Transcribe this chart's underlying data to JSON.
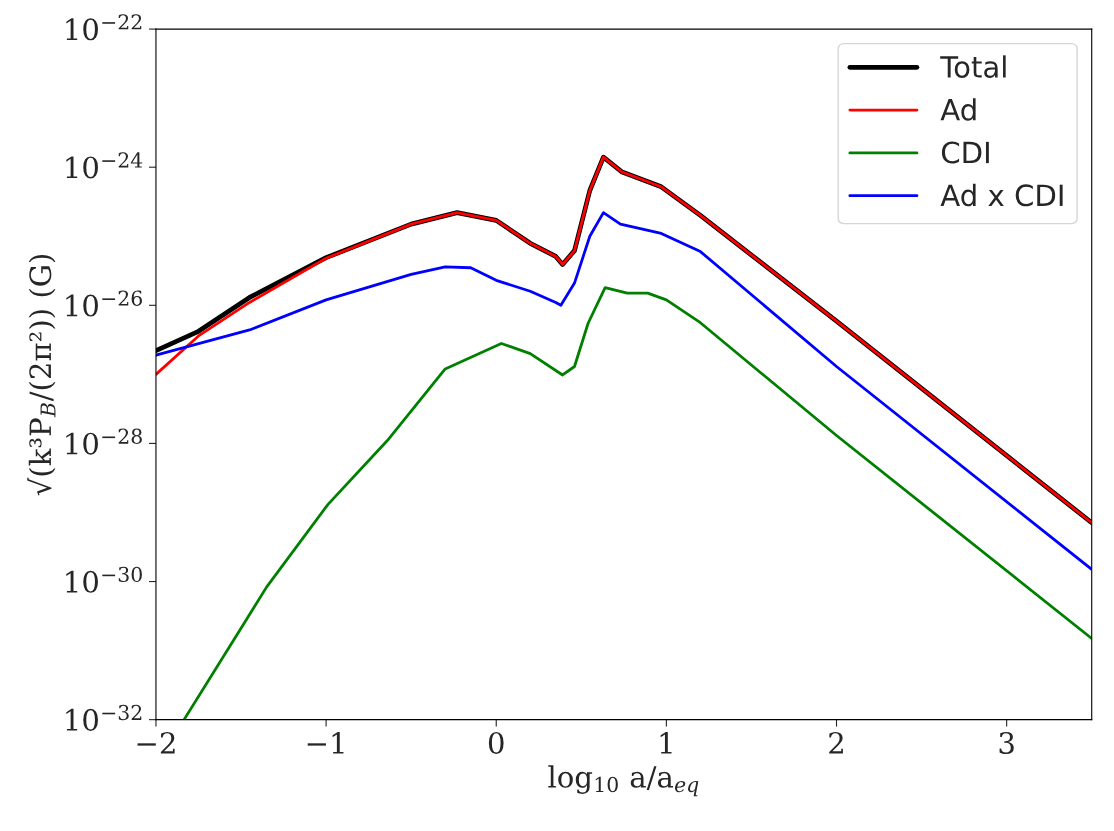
{
  "chart_data": {
    "type": "line",
    "xlabel": "log$_{10}$ a/a$_{eq}$",
    "ylabel": "√(k³P$_{B}$/(2π²)) (G)",
    "log": "y",
    "grid": false,
    "legend": "top right",
    "line_style": "solid",
    "marker": "none",
    "xlim": [
      -2,
      3.5
    ],
    "xticks": [
      {
        "value": -2,
        "label": "−2"
      },
      {
        "value": -1,
        "label": "−1"
      },
      0,
      1,
      2,
      3
    ],
    "ylim": [
      1e-32,
      1e-22
    ],
    "yticks": [
      {
        "value": 1e-32,
        "label": "10$^{−32}$"
      },
      {
        "value": 1e-30,
        "label": "10$^{−30}$"
      },
      {
        "value": 1e-28,
        "label": "10$^{−28}$"
      },
      {
        "value": 1e-26,
        "label": "10$^{−26}$"
      },
      {
        "value": 1e-24,
        "label": "10$^{−24}$"
      },
      {
        "value": 1e-22,
        "label": "10$^{−22}$"
      }
    ],
    "series": [
      {
        "name": "Total",
        "color": "#000000",
        "x": [
          -2.0,
          -1.75,
          -1.45,
          -1.0,
          -0.5,
          -0.23,
          0.0,
          0.2,
          0.35,
          0.39,
          0.46,
          0.55,
          0.63,
          0.74,
          0.97,
          1.2,
          2.0,
          3.5
        ],
        "values": [
          2.2e-27,
          4.2e-27,
          1.3e-26,
          4.9e-26,
          1.5e-25,
          2.2e-25,
          1.7e-25,
          7.9e-26,
          5.1e-26,
          3.9e-26,
          6.2e-26,
          4.6e-25,
          1.4e-24,
          8.5e-25,
          5.2e-25,
          2e-25,
          5.9e-27,
          7.1e-30
        ]
      },
      {
        "name": "Ad",
        "color": "#ff0000",
        "x": [
          -2.0,
          -1.75,
          -1.45,
          -1.0,
          -0.5,
          -0.23,
          0.0,
          0.2,
          0.35,
          0.39,
          0.46,
          0.55,
          0.63,
          0.74,
          0.97,
          1.2,
          2.0,
          3.5
        ],
        "values": [
          1e-27,
          3.6e-27,
          1.1e-26,
          4.8e-26,
          1.5e-25,
          2.2e-25,
          1.7e-25,
          7.9e-26,
          5.1e-26,
          3.9e-26,
          6.2e-26,
          4.6e-25,
          1.4e-24,
          8.5e-25,
          5.2e-25,
          2e-25,
          5.9e-27,
          7.1e-30
        ]
      },
      {
        "name": "CDI",
        "color": "#008000",
        "x": [
          -1.835,
          -1.5,
          -1.35,
          -0.99,
          -0.64,
          -0.3,
          0.03,
          0.2,
          0.39,
          0.46,
          0.54,
          0.64,
          0.77,
          0.89,
          1.0,
          1.2,
          2.0,
          3.5
        ],
        "values": [
          1e-32,
          2.1e-31,
          8.3e-31,
          1.3e-29,
          1.1e-28,
          1.2e-27,
          2.8e-27,
          2e-27,
          9.8e-28,
          1.3e-27,
          5.5e-27,
          1.8e-26,
          1.5e-26,
          1.5e-26,
          1.2e-26,
          5.6e-27,
          1.3e-28,
          1.5e-31
        ]
      },
      {
        "name": "Ad x CDI",
        "color": "#0000ff",
        "x": [
          -2.0,
          -1.45,
          -1.0,
          -0.5,
          -0.3,
          -0.15,
          0.0,
          0.2,
          0.35,
          0.38,
          0.46,
          0.55,
          0.63,
          0.73,
          0.97,
          1.2,
          2.0,
          3.5
        ],
        "values": [
          1.9e-27,
          4.4e-27,
          1.2e-26,
          2.8e-26,
          3.6e-26,
          3.5e-26,
          2.3e-26,
          1.6e-26,
          1.1e-26,
          1e-26,
          2.1e-26,
          1e-25,
          2.2e-25,
          1.5e-25,
          1.1e-25,
          6e-26,
          1.3e-27,
          1.5e-30
        ]
      }
    ]
  }
}
